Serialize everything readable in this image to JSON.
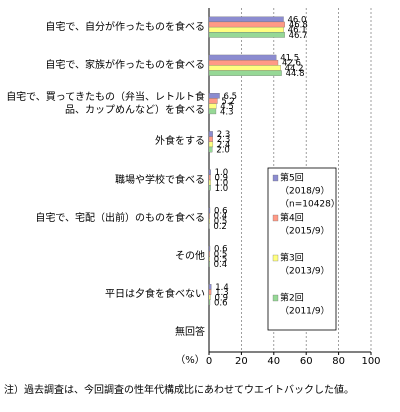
{
  "chart_data": {
    "type": "bar",
    "orientation": "horizontal",
    "categories": [
      "自宅で、自分が作ったものを食べる",
      "自宅で、家族が作ったものを食べる",
      "自宅で、買ってきたもの（弁当、レトルト食品、カップめんなど）を食べる",
      "外食をする",
      "職場や学校で食べる",
      "自宅で、宅配（出前）のものを食べる",
      "その他",
      "平日は夕食を食べない",
      "無回答"
    ],
    "series": [
      {
        "name": "第5回",
        "period": "（2018/9）",
        "sample": "（n=10428）",
        "color": "#8c8cd0",
        "values": [
          46.0,
          41.5,
          6.5,
          2.3,
          1.0,
          0.6,
          0.6,
          1.4,
          null
        ],
        "value_labels": [
          "46.0",
          "41.5",
          "6.5",
          "2.3",
          "1.0",
          "0.6",
          "0.6",
          "1.4",
          null
        ]
      },
      {
        "name": "第4回",
        "period": "（2015/9）",
        "color": "#ff9a86",
        "values": [
          46.8,
          42.6,
          5.2,
          2.3,
          0.9,
          0.4,
          0.5,
          1.3,
          null
        ],
        "value_labels": [
          "46.8",
          "42.6",
          "5.2",
          "2.3",
          "0.9",
          "0.4",
          "0.5",
          "1.3",
          null
        ]
      },
      {
        "name": "第3回",
        "period": "（2013/9）",
        "color": "#ffff80",
        "values": [
          46.1,
          44.2,
          4.5,
          2.4,
          1.0,
          0.5,
          0.5,
          0.9,
          null
        ],
        "value_labels": [
          "46.1",
          "44.2",
          "4.5",
          "2.4",
          "1.0",
          "0.5",
          "0.5",
          "0.9",
          null
        ]
      },
      {
        "name": "第2回",
        "period": "（2011/9）",
        "color": "#96d896",
        "values": [
          46.7,
          44.8,
          4.3,
          2.0,
          1.0,
          0.2,
          0.4,
          0.6,
          null
        ],
        "value_labels": [
          "46.7",
          "44.8",
          "4.3",
          "2.0",
          "1.0",
          "0.2",
          "0.4",
          "0.6",
          null
        ]
      }
    ],
    "xlim": [
      0,
      100
    ],
    "xticks": [
      0,
      20,
      40,
      60,
      80,
      100
    ],
    "xlabel": "（%）",
    "grid": true,
    "footnote": "注）過去調査は、今回調査の性年代構成比にあわせてウエイトバックした値。"
  }
}
